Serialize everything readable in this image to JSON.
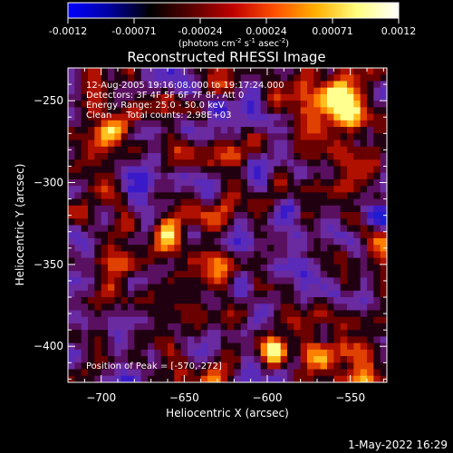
{
  "colorbar": {
    "tick_labels": [
      "-0.0012",
      "-0.00071",
      "-0.00024",
      "0.00024",
      "0.00071",
      "0.0012"
    ],
    "units_main": "(photons cm",
    "units_exp1": "-2",
    "units_mid": " s",
    "units_exp2": "-1",
    "units_tail": " asec",
    "units_exp3": "-2",
    "units_close": ")",
    "stops": [
      "#0000ff",
      "#0000a0",
      "#000000",
      "#5a0000",
      "#c00000",
      "#ff5000",
      "#ffb000",
      "#ffff80",
      "#ffffff"
    ]
  },
  "title": "Reconstructed RHESSI Image",
  "info": {
    "line1": "12-Aug-2005 19:16:08.000 to 19:17:24.000",
    "line2": "Detectors: 3F 4F 5F 6F 7F 8F, Att 0",
    "line3": "Energy Range: 25.0 - 50.0 keV",
    "line4": "Clean     Total counts: 2.98E+03",
    "peak": "Position of Peak = [-570,-272]"
  },
  "plot": {
    "xlabel": "Heliocentric X (arcsec)",
    "ylabel": "Heliocentric Y (arcsec)",
    "xlim": [
      -720,
      -528
    ],
    "ylim": [
      -422,
      -230
    ],
    "xticks": [
      -700,
      -650,
      -600,
      -550
    ],
    "xtick_labels": [
      "−700",
      "−650",
      "−600",
      "−550"
    ],
    "yticks": [
      -250,
      -300,
      -350,
      -400
    ],
    "ytick_labels": [
      "−250",
      "−300",
      "−350",
      "−400"
    ]
  },
  "timestamp": "1-May-2022 16:29"
}
